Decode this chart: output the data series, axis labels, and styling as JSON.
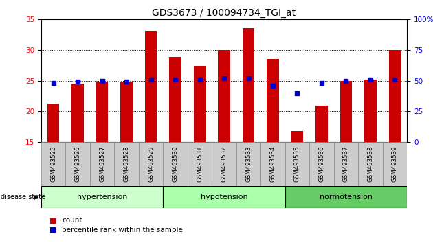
{
  "title": "GDS3673 / 100094734_TGI_at",
  "samples": [
    "GSM493525",
    "GSM493526",
    "GSM493527",
    "GSM493528",
    "GSM493529",
    "GSM493530",
    "GSM493531",
    "GSM493532",
    "GSM493533",
    "GSM493534",
    "GSM493535",
    "GSM493536",
    "GSM493537",
    "GSM493538",
    "GSM493539"
  ],
  "count_values": [
    21.3,
    24.5,
    24.9,
    24.7,
    33.1,
    28.9,
    27.4,
    30.0,
    33.6,
    28.5,
    16.8,
    20.9,
    25.0,
    25.2,
    30.0
  ],
  "percentile_values": [
    48,
    49,
    50,
    49,
    51,
    51,
    51,
    52,
    52,
    46,
    40,
    48,
    50,
    51,
    51
  ],
  "ylim_left": [
    15,
    35
  ],
  "ylim_right": [
    0,
    100
  ],
  "yticks_left": [
    15,
    20,
    25,
    30,
    35
  ],
  "yticks_right": [
    0,
    25,
    50,
    75,
    100
  ],
  "groups": [
    {
      "label": "hypertension",
      "start": 0,
      "end": 5
    },
    {
      "label": "hypotension",
      "start": 5,
      "end": 10
    },
    {
      "label": "normotension",
      "start": 10,
      "end": 15
    }
  ],
  "group_colors": [
    "#ccffcc",
    "#aaffaa",
    "#66cc66"
  ],
  "bar_color": "#cc0000",
  "dot_color": "#0000cc",
  "bar_width": 0.5,
  "label_bg_color": "#cccccc",
  "disease_state_label": "disease state",
  "legend_count": "count",
  "legend_pct": "percentile rank within the sample",
  "title_fontsize": 10,
  "tick_fontsize": 7.5,
  "grid_ticks": [
    20,
    25,
    30
  ]
}
